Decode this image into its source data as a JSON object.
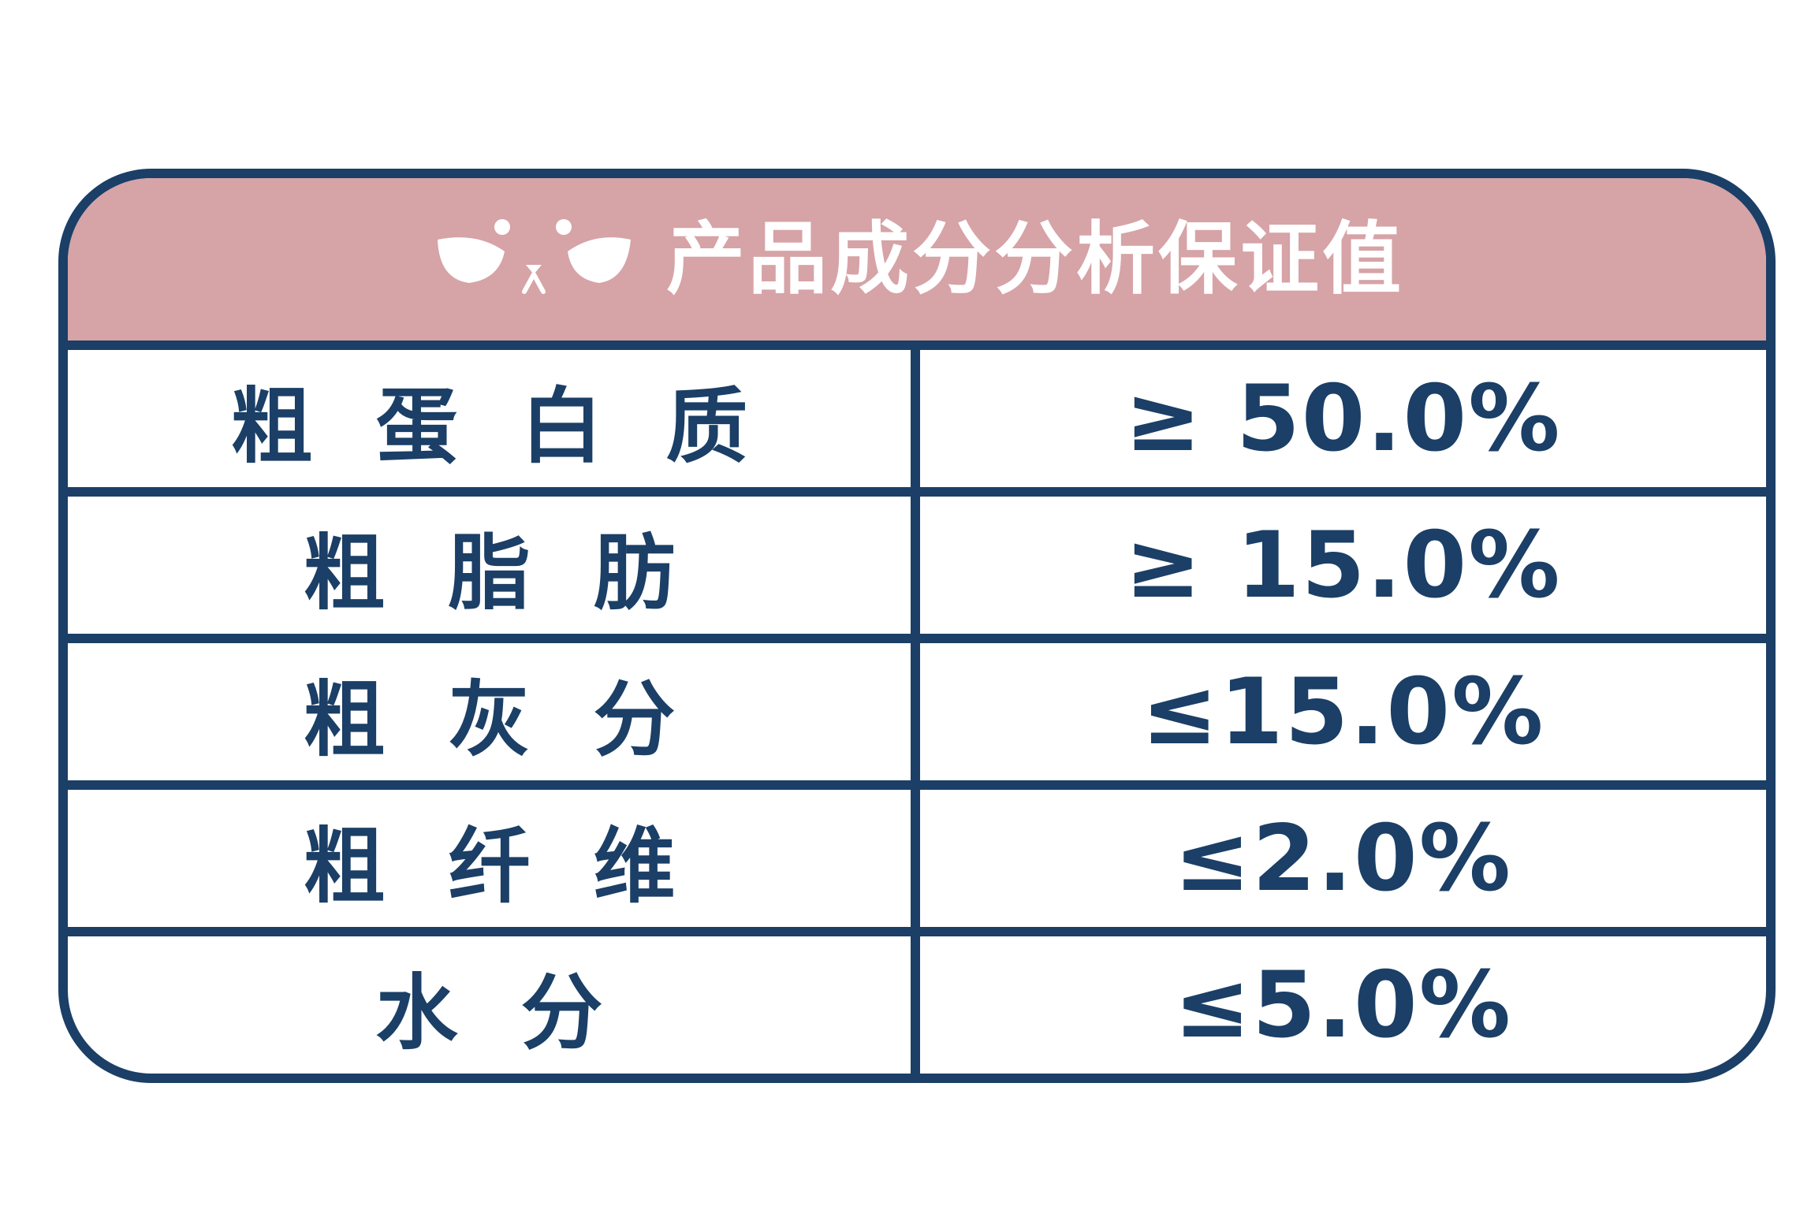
{
  "title": "产品成分分析保证值",
  "mascot_icon": "panda-face-icon",
  "colors": {
    "border": "#1b3f66",
    "header_bg": "#d6a3a7",
    "text": "#1b3f66",
    "header_text": "#ffffff"
  },
  "rows": [
    {
      "name": "粗蛋白质",
      "value": "≥ 50.0%"
    },
    {
      "name": "粗脂肪",
      "value": "≥ 15.0%"
    },
    {
      "name": "粗灰分",
      "value": "≤15.0%"
    },
    {
      "name": "粗纤维",
      "value": "≤2.0%"
    },
    {
      "name": "水分",
      "value": "≤5.0%"
    }
  ]
}
